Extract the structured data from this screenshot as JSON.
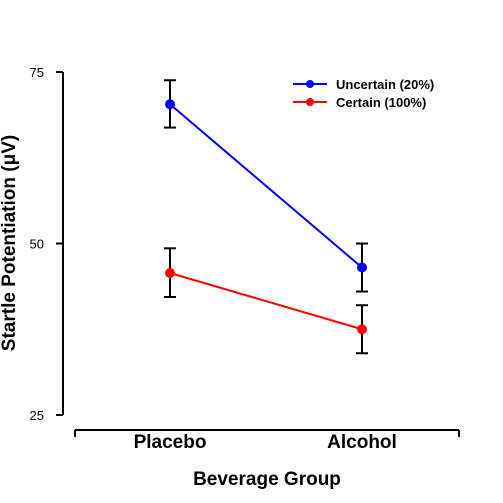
{
  "chart_data": {
    "type": "line",
    "categories": [
      "Placebo",
      "Alcohol"
    ],
    "series": [
      {
        "name": "Uncertain (20%)",
        "color": "#0000ff",
        "values": [
          70.3,
          46.5
        ],
        "error_low": [
          66.9,
          43.0
        ],
        "error_high": [
          73.8,
          50.0
        ]
      },
      {
        "name": "Certain (100%)",
        "color": "#ff0000",
        "values": [
          45.7,
          37.5
        ],
        "error_low": [
          42.2,
          34.0
        ],
        "error_high": [
          49.3,
          41.0
        ]
      }
    ],
    "xlabel": "Beverage Group",
    "ylabel": "Startle Potentiation (μV)",
    "ylim": [
      25,
      75
    ],
    "yticks": [
      "25",
      "50",
      "75"
    ],
    "grid": false,
    "legend_position": "top-right"
  }
}
